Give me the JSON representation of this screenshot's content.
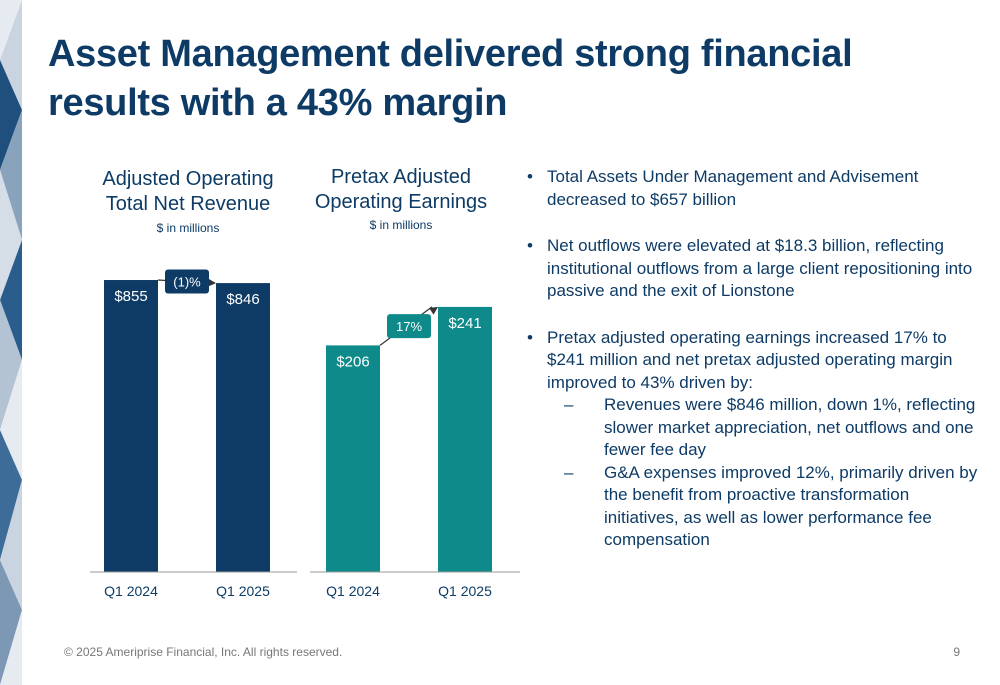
{
  "slide": {
    "title": "Asset Management delivered strong financial results with a 43% margin",
    "footer": "© 2025 Ameriprise Financial, Inc. All rights reserved.",
    "page_number": "9"
  },
  "chart_data": [
    {
      "type": "bar",
      "title": "Adjusted Operating Total Net Revenue",
      "subtitle": "$ in millions",
      "categories": [
        "Q1 2024",
        "Q1 2025"
      ],
      "values": [
        855,
        846
      ],
      "value_labels": [
        "$855",
        "$846"
      ],
      "change_label": "(1)%",
      "bar_color": "#0d3b66",
      "grid": false
    },
    {
      "type": "bar",
      "title": "Pretax Adjusted Operating Earnings",
      "subtitle": "$ in millions",
      "categories": [
        "Q1 2024",
        "Q1 2025"
      ],
      "values": [
        206,
        241
      ],
      "value_labels": [
        "$206",
        "$241"
      ],
      "change_label": "17%",
      "bar_color": "#0e8a8a",
      "grid": false
    }
  ],
  "bullets": [
    {
      "text": "Total Assets Under Management and Advisement decreased to $657 billion",
      "sub": []
    },
    {
      "text": "Net outflows were elevated at $18.3 billion, reflecting institutional outflows from a large client repositioning into passive and the exit of Lionstone",
      "sub": []
    },
    {
      "text": "Pretax adjusted operating earnings increased 17% to $241 million and net pretax adjusted operating margin improved to 43% driven by:",
      "sub": [
        "Revenues were $846 million, down 1%, reflecting slower market appreciation, net outflows and one fewer fee day",
        "G&A expenses improved 12%, primarily driven by the benefit from proactive transformation initiatives, as well as lower performance fee compensation"
      ]
    }
  ],
  "colors": {
    "navy": "#0d3b66",
    "teal": "#0e8a8a",
    "footer_gray": "#777777"
  }
}
